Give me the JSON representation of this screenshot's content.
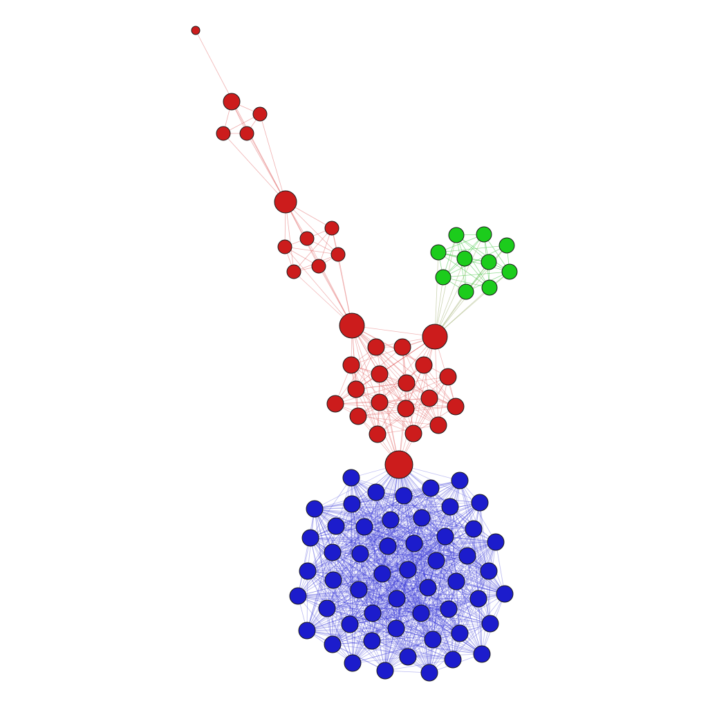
{
  "diagram": {
    "type": "network-graph",
    "labels_shown": false,
    "groups": [
      {
        "id": "red",
        "color": "#cc1c1c",
        "edge_color": "#e06060",
        "node_count": 33
      },
      {
        "id": "green",
        "color": "#1ccc1c",
        "edge_color": "#3ec43e",
        "node_count": 10
      },
      {
        "id": "blue",
        "color": "#1c1ccc",
        "edge_color": "#3a3ad6",
        "node_count": 66
      }
    ],
    "bridge_edge_color_red_green": "#9aaa66"
  }
}
